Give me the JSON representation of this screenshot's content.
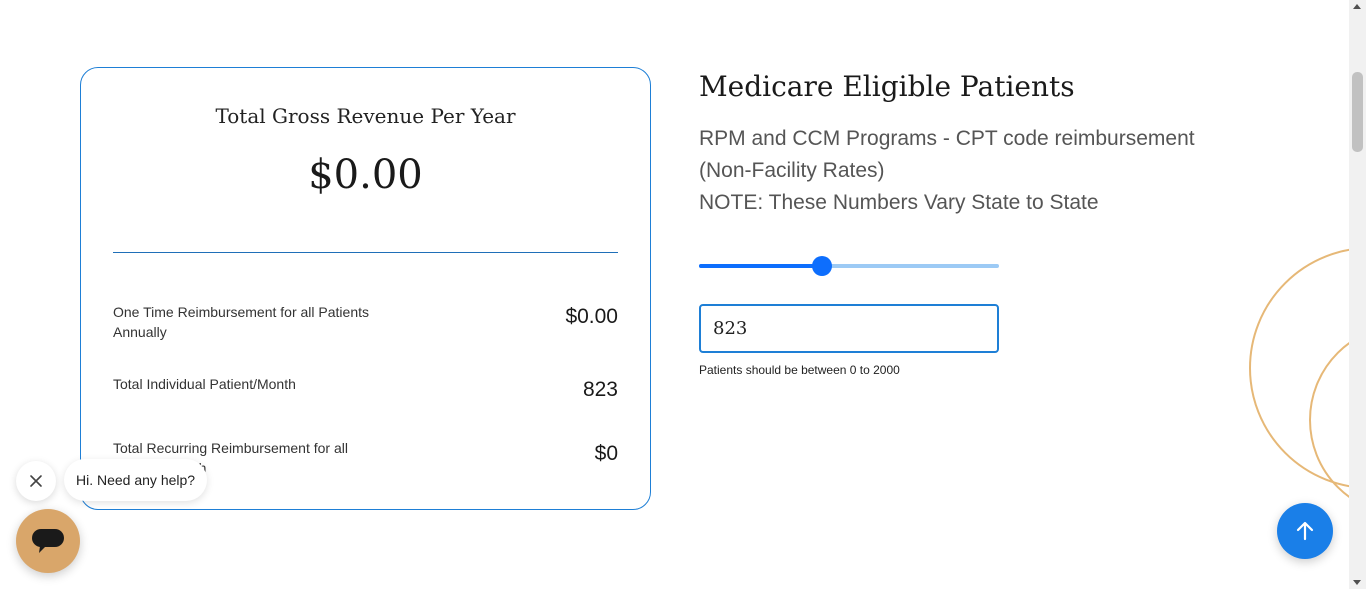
{
  "colors": {
    "accent": "#1e7fd6",
    "slider_fill": "#0d6efd",
    "slider_track": "#9ccaf5",
    "chat_button": "#d9a66a",
    "to_top_button": "#1a7fe8",
    "decor_circle": "#e6b877"
  },
  "revenue_card": {
    "title": "Total Gross Revenue Per Year",
    "total": "$0.00",
    "rows": [
      {
        "label": "One Time Reimbursement for all Patients Annually",
        "value": "$0.00"
      },
      {
        "label": "Total Individual Patient/Month",
        "value": "823"
      },
      {
        "label": "Total Recurring Reimbursement for all Patients/Month",
        "value": "$0"
      }
    ]
  },
  "patients": {
    "heading": "Medicare Eligible Patients",
    "description_lines": [
      "RPM and CCM Programs - CPT code reimbursement",
      "(Non-Facility Rates)",
      "NOTE: These Numbers Vary State to State"
    ],
    "slider": {
      "min": 0,
      "max": 2000,
      "value": 823
    },
    "input_value": "823",
    "hint": "Patients should be between 0 to 2000"
  },
  "chat": {
    "greeting": "Hi. Need any help?",
    "close_icon": "close-icon",
    "button_icon": "chat-icon"
  },
  "scroll_top_icon": "arrow-up-icon"
}
